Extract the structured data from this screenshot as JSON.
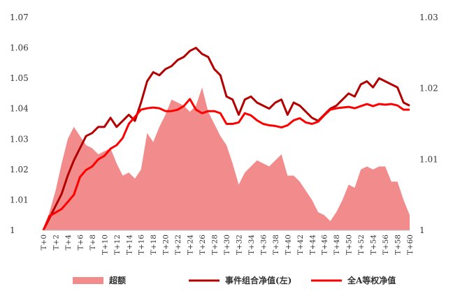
{
  "chart_data": {
    "type": "line",
    "x": [
      "T+0",
      "T+1",
      "T+2",
      "T+3",
      "T+4",
      "T+5",
      "T+6",
      "T+7",
      "T+8",
      "T+9",
      "T+10",
      "T+11",
      "T+12",
      "T+13",
      "T+14",
      "T+15",
      "T+16",
      "T+17",
      "T+18",
      "T+19",
      "T+20",
      "T+21",
      "T+22",
      "T+23",
      "T+24",
      "T+25",
      "T+26",
      "T+27",
      "T+28",
      "T+29",
      "T+30",
      "T+31",
      "T+32",
      "T+33",
      "T+34",
      "T+35",
      "T+36",
      "T+37",
      "T+38",
      "T+39",
      "T+40",
      "T+41",
      "T+42",
      "T+43",
      "T+44",
      "T+45",
      "T+46",
      "T+47",
      "T+48",
      "T+49",
      "T+50",
      "T+51",
      "T+52",
      "T+53",
      "T+54",
      "T+55",
      "T+56",
      "T+57",
      "T+58",
      "T+59",
      "T+60"
    ],
    "x_tick_labels": [
      "T+0",
      "T+2",
      "T+4",
      "T+6",
      "T+8",
      "T+10",
      "T+12",
      "T+14",
      "T+16",
      "T+18",
      "T+20",
      "T+22",
      "T+24",
      "T+26",
      "T+28",
      "T+30",
      "T+32",
      "T+34",
      "T+36",
      "T+38",
      "T+40",
      "T+42",
      "T+44",
      "T+46",
      "T+48",
      "T+50",
      "T+52",
      "T+54",
      "T+56",
      "T+58",
      "T+60"
    ],
    "y_left": {
      "range": [
        1,
        1.07
      ],
      "ticks": [
        "1",
        "1.01",
        "1.02",
        "1.03",
        "1.04",
        "1.05",
        "1.06",
        "1.07"
      ]
    },
    "y_right": {
      "range": [
        1,
        1.03
      ],
      "ticks": [
        "1",
        "1.01",
        "1.02",
        "1.03"
      ]
    },
    "series": [
      {
        "name": "超额",
        "kind": "area",
        "axis": "left",
        "color": "#f28b8b",
        "values": [
          1.0,
          1.006,
          1.013,
          1.022,
          1.03,
          1.034,
          1.031,
          1.028,
          1.027,
          1.025,
          1.026,
          1.027,
          1.022,
          1.018,
          1.019,
          1.017,
          1.02,
          1.032,
          1.029,
          1.034,
          1.038,
          1.043,
          1.042,
          1.041,
          1.039,
          1.041,
          1.047,
          1.039,
          1.035,
          1.031,
          1.028,
          1.022,
          1.015,
          1.019,
          1.021,
          1.023,
          1.022,
          1.021,
          1.023,
          1.025,
          1.018,
          1.018,
          1.016,
          1.013,
          1.01,
          1.006,
          1.005,
          1.003,
          1.006,
          1.01,
          1.015,
          1.014,
          1.02,
          1.021,
          1.02,
          1.021,
          1.021,
          1.016,
          1.016,
          1.01,
          1.005
        ]
      },
      {
        "name": "事件组合净值(左)",
        "kind": "line",
        "axis": "left",
        "color": "#b30000",
        "values": [
          1.0,
          1.004,
          1.008,
          1.012,
          1.018,
          1.023,
          1.027,
          1.031,
          1.032,
          1.034,
          1.034,
          1.037,
          1.034,
          1.036,
          1.038,
          1.036,
          1.042,
          1.049,
          1.052,
          1.051,
          1.053,
          1.054,
          1.056,
          1.057,
          1.059,
          1.06,
          1.058,
          1.057,
          1.053,
          1.051,
          1.044,
          1.043,
          1.038,
          1.043,
          1.044,
          1.042,
          1.041,
          1.04,
          1.042,
          1.043,
          1.038,
          1.042,
          1.041,
          1.039,
          1.037,
          1.036,
          1.038,
          1.04,
          1.041,
          1.043,
          1.045,
          1.044,
          1.048,
          1.049,
          1.047,
          1.05,
          1.049,
          1.048,
          1.047,
          1.042,
          1.041
        ]
      },
      {
        "name": "全A等权净值",
        "kind": "line",
        "axis": "right",
        "color": "#ff0000",
        "values": [
          1.0,
          1.002,
          1.0025,
          1.003,
          1.004,
          1.005,
          1.0075,
          1.0085,
          1.009,
          1.01,
          1.0105,
          1.0115,
          1.012,
          1.013,
          1.015,
          1.016,
          1.017,
          1.0172,
          1.0173,
          1.0172,
          1.0168,
          1.0168,
          1.017,
          1.0175,
          1.0185,
          1.017,
          1.0165,
          1.0168,
          1.0168,
          1.0165,
          1.015,
          1.015,
          1.0152,
          1.0165,
          1.0162,
          1.0155,
          1.015,
          1.0148,
          1.0147,
          1.0145,
          1.0148,
          1.0155,
          1.0158,
          1.0152,
          1.015,
          1.0153,
          1.0162,
          1.017,
          1.0172,
          1.0173,
          1.0174,
          1.0172,
          1.0175,
          1.0178,
          1.0175,
          1.0178,
          1.0177,
          1.0178,
          1.0176,
          1.017,
          1.017
        ]
      }
    ],
    "legend": {
      "position": "bottom",
      "items": [
        "超额",
        "事件组合净值(左)",
        "全A等权净值"
      ]
    },
    "grid": false
  }
}
